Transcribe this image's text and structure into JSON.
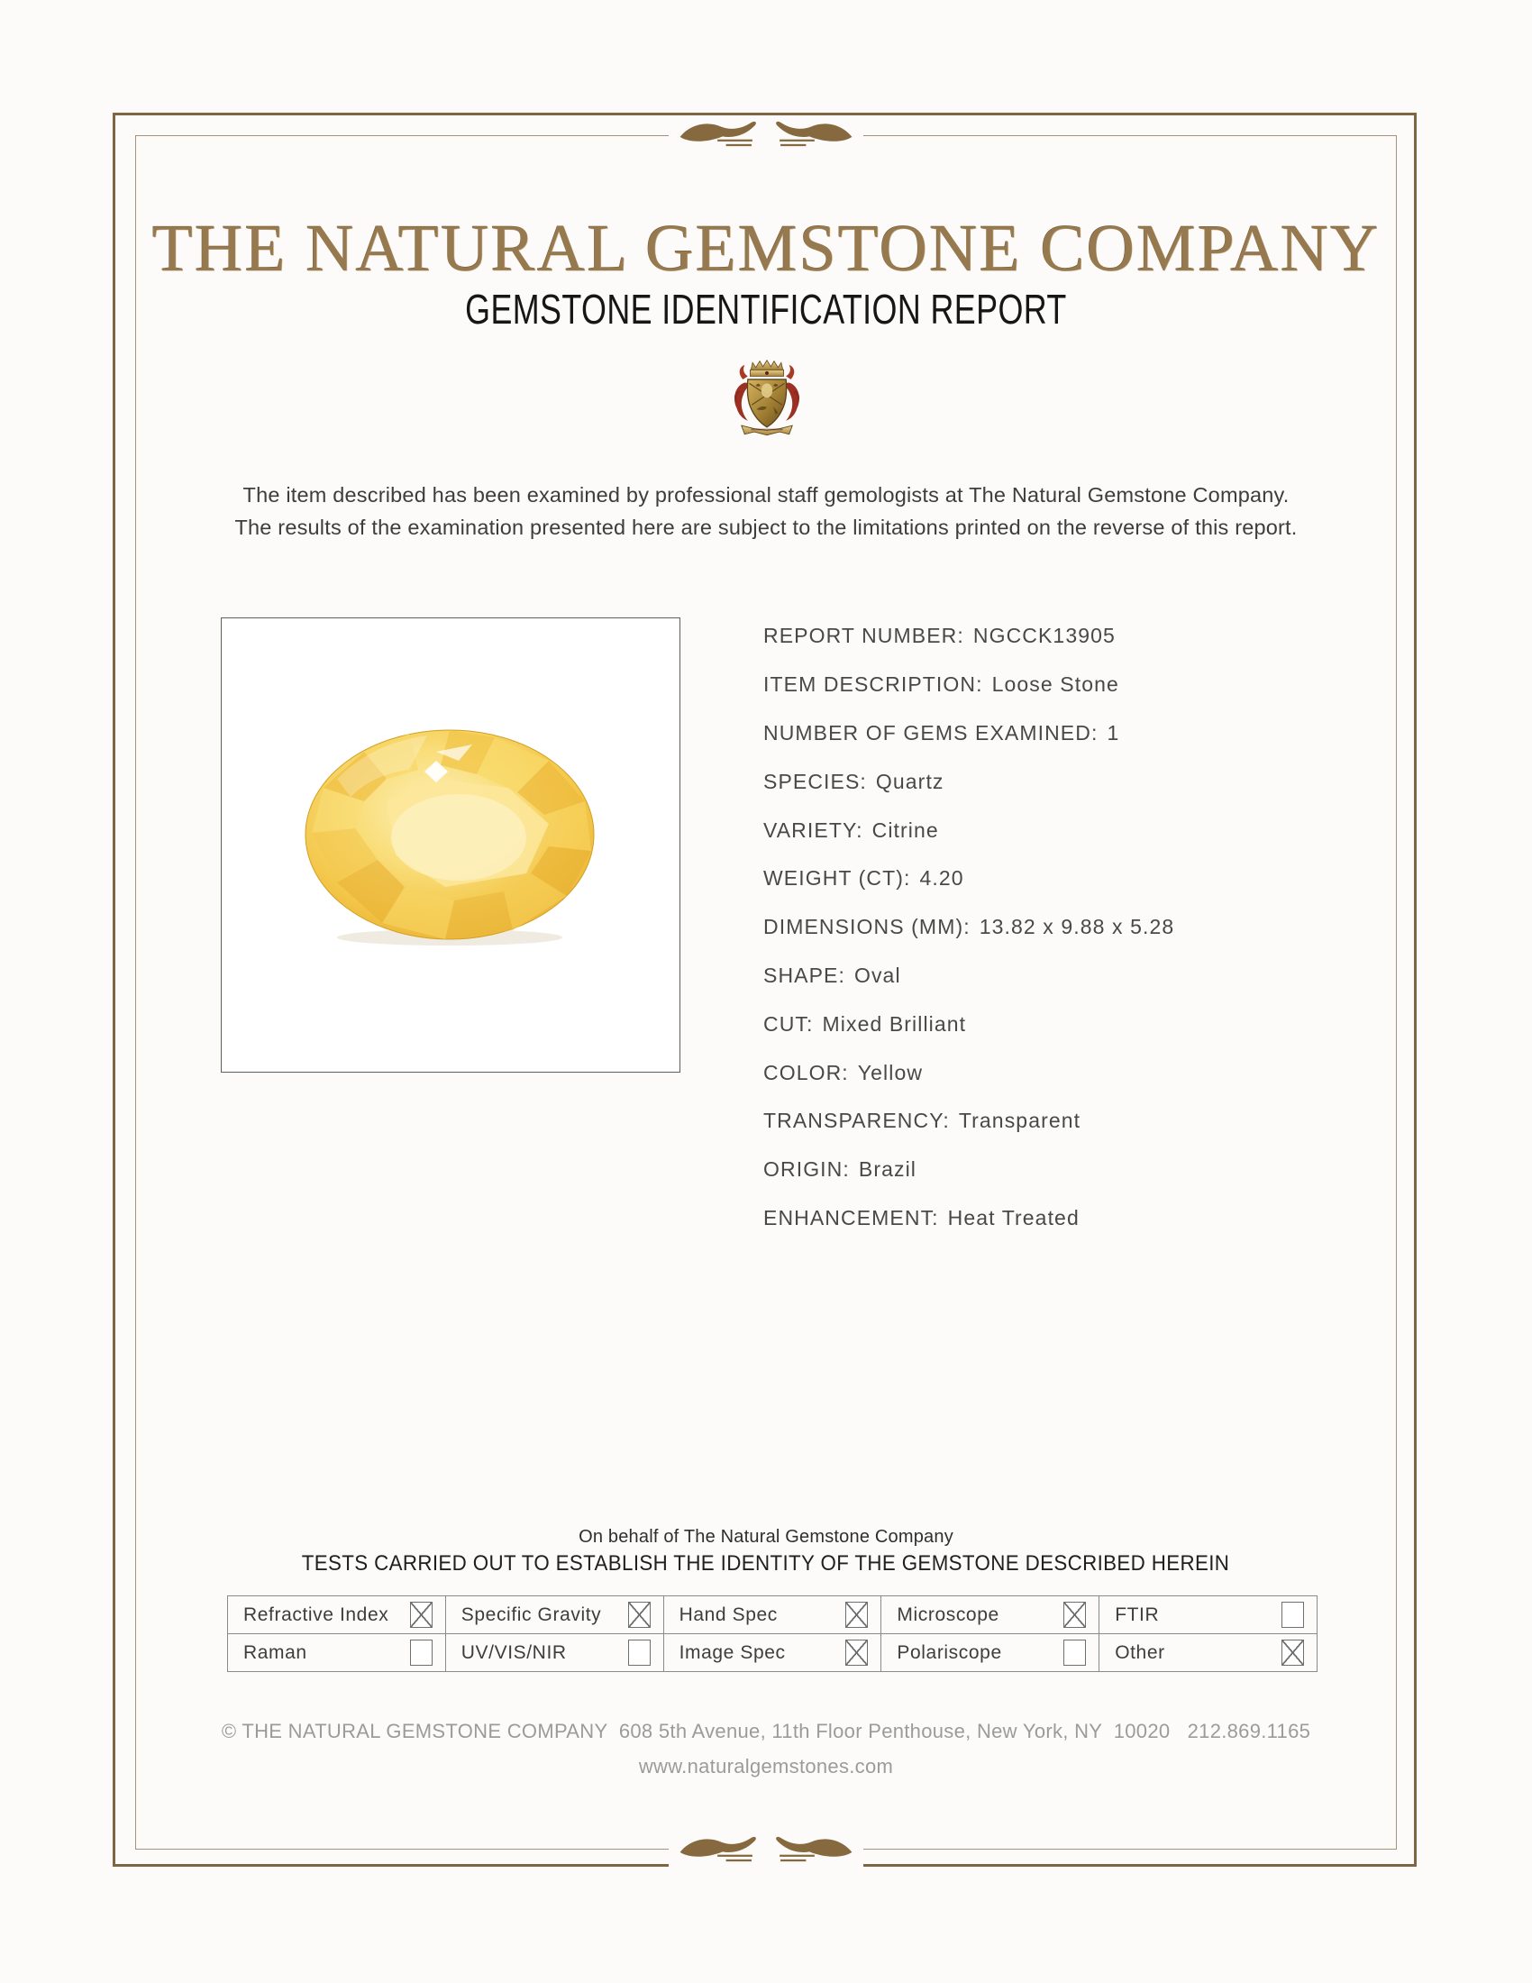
{
  "colors": {
    "accent_gold": "#97794f",
    "frame_outer": "#7e6543",
    "frame_inner": "#a5917a",
    "ornament_gold": "#87693f",
    "gem_yellow": "#f3c649",
    "crest_red": "#9c3023",
    "text_dark": "#3f3f3f",
    "footer_gray": "#9b9b9b"
  },
  "header": {
    "company_name": "THE NATURAL GEMSTONE COMPANY",
    "report_title": "GEMSTONE IDENTIFICATION REPORT"
  },
  "intro": {
    "line1": "The item described has been examined by professional staff gemologists at The Natural Gemstone Company.",
    "line2": "The results of the examination presented here are subject to the limitations printed on the reverse of this report."
  },
  "details": [
    {
      "label": "REPORT NUMBER:",
      "value": "NGCCK13905"
    },
    {
      "label": "ITEM DESCRIPTION:",
      "value": "Loose Stone"
    },
    {
      "label": "NUMBER OF GEMS EXAMINED:",
      "value": "1"
    },
    {
      "label": "SPECIES:",
      "value": "Quartz"
    },
    {
      "label": "VARIETY:",
      "value": "Citrine"
    },
    {
      "label": "WEIGHT (CT):",
      "value": "4.20"
    },
    {
      "label": "DIMENSIONS (MM):",
      "value": "13.82 x 9.88 x 5.28"
    },
    {
      "label": "SHAPE:",
      "value": "Oval"
    },
    {
      "label": "CUT:",
      "value": "Mixed Brilliant"
    },
    {
      "label": "COLOR:",
      "value": "Yellow"
    },
    {
      "label": "TRANSPARENCY:",
      "value": "Transparent"
    },
    {
      "label": "ORIGIN:",
      "value": "Brazil"
    },
    {
      "label": "ENHANCEMENT:",
      "value": "Heat Treated"
    }
  ],
  "photo": {
    "subject": "oval yellow citrine gemstone"
  },
  "tests": {
    "on_behalf": "On behalf of The Natural Gemstone Company",
    "heading": "TESTS CARRIED OUT TO ESTABLISH THE IDENTITY OF THE GEMSTONE DESCRIBED HEREIN",
    "rows": [
      [
        {
          "label": "Refractive Index",
          "checked": true
        },
        {
          "label": "Specific Gravity",
          "checked": true
        },
        {
          "label": "Hand Spec",
          "checked": true
        },
        {
          "label": "Microscope",
          "checked": true
        },
        {
          "label": "FTIR",
          "checked": false
        }
      ],
      [
        {
          "label": "Raman",
          "checked": false
        },
        {
          "label": "UV/VIS/NIR",
          "checked": false
        },
        {
          "label": "Image Spec",
          "checked": true
        },
        {
          "label": "Polariscope",
          "checked": false
        },
        {
          "label": "Other",
          "checked": true
        }
      ]
    ]
  },
  "footer": {
    "line1": "© THE NATURAL GEMSTONE COMPANY  608 5th Avenue, 11th Floor Penthouse, New York, NY  10020   212.869.1165",
    "line2": "www.naturalgemstones.com"
  }
}
